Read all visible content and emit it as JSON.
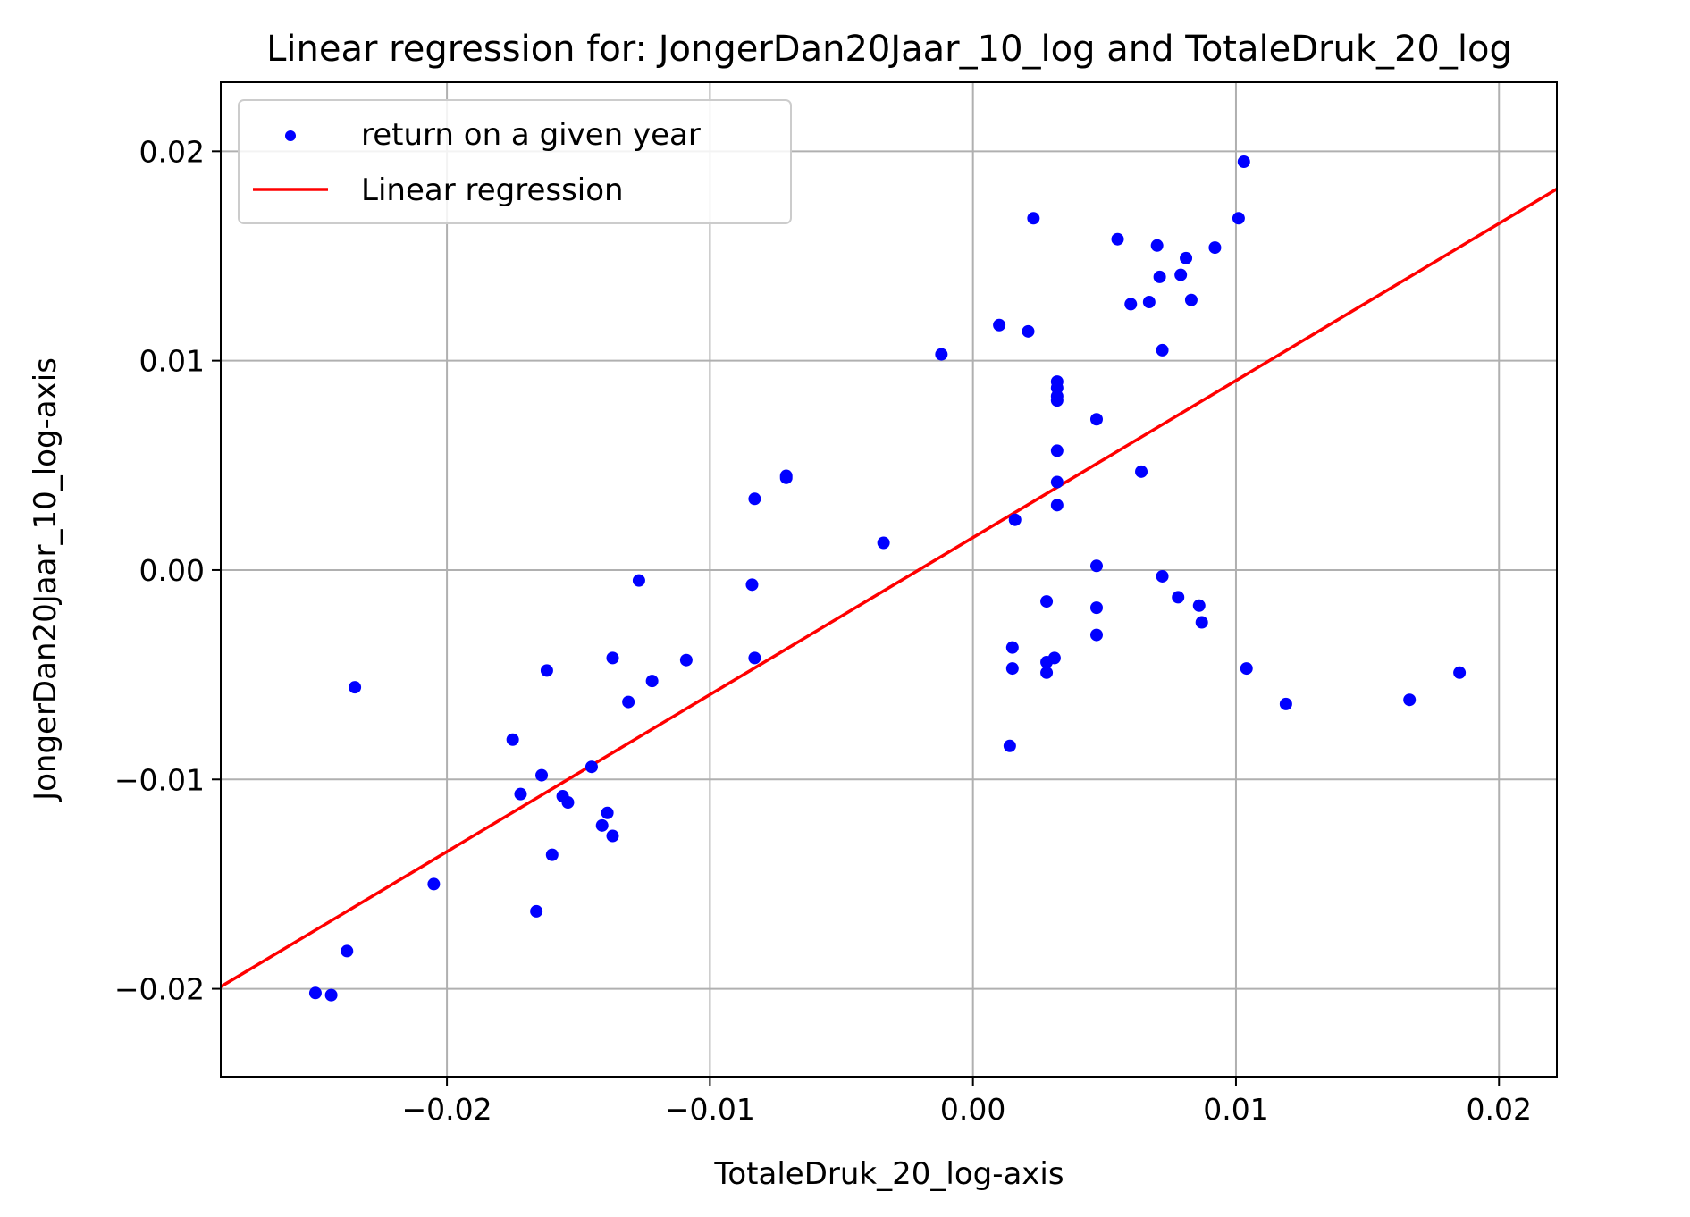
{
  "chart_data": {
    "type": "scatter",
    "title": "Linear regression for: JongerDan20Jaar_10_log and TotaleDruk_20_log",
    "xlabel": "TotaleDruk_20_log-axis",
    "ylabel": "JongerDan20Jaar_10_log-axis",
    "xlim": [
      -0.0286,
      0.0222
    ],
    "ylim": [
      -0.0242,
      0.0233
    ],
    "xticks": [
      {
        "value": -0.02,
        "label": "−0.02"
      },
      {
        "value": -0.01,
        "label": "−0.01"
      },
      {
        "value": 0.0,
        "label": "0.00"
      },
      {
        "value": 0.01,
        "label": "0.01"
      },
      {
        "value": 0.02,
        "label": "0.02"
      }
    ],
    "yticks": [
      {
        "value": -0.02,
        "label": "−0.02"
      },
      {
        "value": -0.01,
        "label": "−0.01"
      },
      {
        "value": 0.0,
        "label": "0.00"
      },
      {
        "value": 0.01,
        "label": "0.01"
      },
      {
        "value": 0.02,
        "label": "0.02"
      }
    ],
    "grid": true,
    "legend_position": "top-left",
    "series": [
      {
        "name": "return on a given year",
        "kind": "scatter",
        "color": "#0000ff",
        "points": [
          [
            -0.025,
            -0.0202
          ],
          [
            -0.0244,
            -0.0203
          ],
          [
            -0.0238,
            -0.0182
          ],
          [
            -0.0235,
            -0.0056
          ],
          [
            -0.0205,
            -0.015
          ],
          [
            -0.0175,
            -0.0081
          ],
          [
            -0.0172,
            -0.0107
          ],
          [
            -0.0166,
            -0.0163
          ],
          [
            -0.0164,
            -0.0098
          ],
          [
            -0.0162,
            -0.0048
          ],
          [
            -0.016,
            -0.0136
          ],
          [
            -0.0156,
            -0.0108
          ],
          [
            -0.0154,
            -0.0111
          ],
          [
            -0.0145,
            -0.0094
          ],
          [
            -0.0141,
            -0.0122
          ],
          [
            -0.0139,
            -0.0116
          ],
          [
            -0.0137,
            -0.0042
          ],
          [
            -0.0137,
            -0.0127
          ],
          [
            -0.0131,
            -0.0063
          ],
          [
            -0.0127,
            -0.0005
          ],
          [
            -0.0122,
            -0.0053
          ],
          [
            -0.0109,
            -0.0043
          ],
          [
            -0.0084,
            -0.0007
          ],
          [
            -0.0083,
            0.0034
          ],
          [
            -0.0083,
            -0.0042
          ],
          [
            -0.0071,
            0.0045
          ],
          [
            -0.0071,
            0.0044
          ],
          [
            -0.0034,
            0.0013
          ],
          [
            -0.0012,
            0.0103
          ],
          [
            0.001,
            0.0117
          ],
          [
            0.0014,
            -0.0084
          ],
          [
            0.0015,
            -0.0037
          ],
          [
            0.0015,
            -0.0047
          ],
          [
            0.0016,
            0.0024
          ],
          [
            0.0021,
            0.0114
          ],
          [
            0.0023,
            0.0168
          ],
          [
            0.0028,
            -0.0015
          ],
          [
            0.0028,
            -0.0044
          ],
          [
            0.0028,
            -0.0049
          ],
          [
            0.0031,
            -0.0042
          ],
          [
            0.0032,
            0.009
          ],
          [
            0.0032,
            0.0087
          ],
          [
            0.0032,
            0.0083
          ],
          [
            0.0032,
            0.0081
          ],
          [
            0.0032,
            0.0057
          ],
          [
            0.0032,
            0.0042
          ],
          [
            0.0032,
            0.0031
          ],
          [
            0.0047,
            -0.0018
          ],
          [
            0.0047,
            -0.0031
          ],
          [
            0.0047,
            0.0072
          ],
          [
            0.0047,
            0.0002
          ],
          [
            0.0055,
            0.0158
          ],
          [
            0.006,
            0.0127
          ],
          [
            0.0064,
            0.0047
          ],
          [
            0.0067,
            0.0128
          ],
          [
            0.007,
            0.0155
          ],
          [
            0.0071,
            0.014
          ],
          [
            0.0072,
            0.0105
          ],
          [
            0.0072,
            -0.0003
          ],
          [
            0.0078,
            -0.0013
          ],
          [
            0.0079,
            0.0141
          ],
          [
            0.0081,
            0.0149
          ],
          [
            0.0083,
            0.0129
          ],
          [
            0.0086,
            -0.0017
          ],
          [
            0.0087,
            -0.0025
          ],
          [
            0.0092,
            0.0154
          ],
          [
            0.0101,
            0.0168
          ],
          [
            0.0103,
            0.0195
          ],
          [
            0.0104,
            -0.0047
          ],
          [
            0.0119,
            -0.0064
          ],
          [
            0.0166,
            -0.0062
          ],
          [
            0.0185,
            -0.0049
          ]
        ]
      },
      {
        "name": "Linear regression",
        "kind": "line",
        "color": "#ff0000",
        "points": [
          [
            -0.0286,
            -0.0199
          ],
          [
            0.0222,
            0.0182
          ]
        ]
      }
    ]
  }
}
